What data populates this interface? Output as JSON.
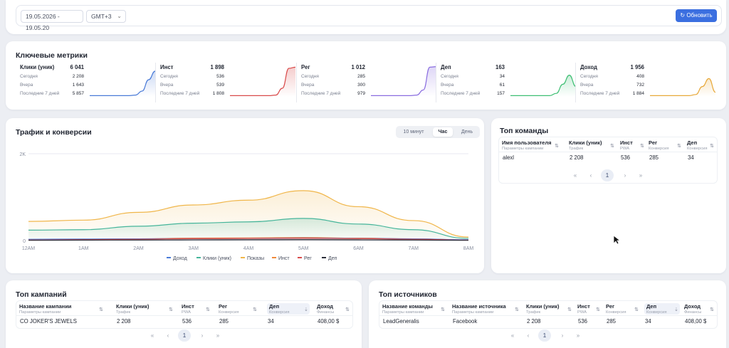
{
  "filters": {
    "date_range": "19.05.2026 - 19.05.20",
    "timezone": "GMT+3",
    "refresh_label": "Обновить"
  },
  "metrics": {
    "title": "Ключевые метрики",
    "row_labels": [
      "Сегодня",
      "Вчера",
      "Последние 7 дней"
    ],
    "items": [
      {
        "name": "Клики (уник)",
        "total": "6 041",
        "today": "2 208",
        "yesterday": "1 643",
        "last7": "5 857",
        "color": "#4a7bd8",
        "shape": [
          2,
          2,
          2,
          2,
          2,
          2,
          2,
          3,
          10,
          30,
          45
        ]
      },
      {
        "name": "Инст",
        "total": "1 898",
        "today": "536",
        "yesterday": "539",
        "last7": "1 808",
        "color": "#d94b4b",
        "shape": [
          2,
          2,
          2,
          2,
          2,
          2,
          2,
          3,
          15,
          50,
          52
        ]
      },
      {
        "name": "Рег",
        "total": "1 012",
        "today": "285",
        "yesterday": "300",
        "last7": "979",
        "color": "#8a6de0",
        "shape": [
          2,
          2,
          2,
          2,
          2,
          2,
          2,
          3,
          12,
          52,
          53
        ]
      },
      {
        "name": "Деп",
        "total": "163",
        "today": "34",
        "yesterday": "61",
        "last7": "157",
        "color": "#3fbf74",
        "shape": [
          2,
          2,
          2,
          2,
          2,
          2,
          2,
          6,
          22,
          38,
          18
        ]
      },
      {
        "name": "Доход",
        "total": "1 956",
        "today": "408",
        "yesterday": "732",
        "last7": "1 884",
        "color": "#e8a93b",
        "shape": [
          2,
          2,
          2,
          2,
          2,
          2,
          2,
          4,
          18,
          32,
          8
        ]
      }
    ]
  },
  "traffic": {
    "title": "Трафик и конверсии",
    "tabs": [
      "10 минут",
      "Час",
      "День"
    ],
    "active_tab": "Час"
  },
  "chart_data": {
    "type": "area",
    "y_ticks": [
      "2K",
      "0"
    ],
    "ylim": [
      0,
      2000
    ],
    "x": [
      "12AM",
      "1AM",
      "2AM",
      "3AM",
      "4AM",
      "5AM",
      "6AM",
      "7AM",
      "8AM"
    ],
    "grid": true,
    "legend_placement": "bottom",
    "series": [
      {
        "name": "Доход",
        "color": "#4a7bd8",
        "values": [
          30,
          35,
          40,
          45,
          50,
          60,
          50,
          40,
          20
        ]
      },
      {
        "name": "Клики (уник)",
        "color": "#45b59a",
        "values": [
          240,
          250,
          330,
          400,
          430,
          510,
          380,
          250,
          50
        ]
      },
      {
        "name": "Показы",
        "color": "#f0b64a",
        "values": [
          440,
          470,
          650,
          820,
          930,
          1150,
          780,
          460,
          80
        ]
      },
      {
        "name": "Инст",
        "color": "#f08a3a",
        "values": [
          20,
          30,
          40,
          55,
          60,
          70,
          55,
          40,
          15
        ]
      },
      {
        "name": "Рег",
        "color": "#d94b4b",
        "values": [
          10,
          20,
          30,
          45,
          50,
          55,
          45,
          30,
          10
        ]
      },
      {
        "name": "Деп",
        "color": "#2b2f3a",
        "values": [
          5,
          10,
          12,
          15,
          18,
          20,
          16,
          12,
          5
        ]
      }
    ]
  },
  "teams": {
    "title": "Топ команды",
    "columns": [
      {
        "label": "Имя пользователя",
        "sub": "Параметры кампании"
      },
      {
        "label": "Клики (уник)",
        "sub": "Трафик"
      },
      {
        "label": "Инст",
        "sub": "PWA"
      },
      {
        "label": "Рег",
        "sub": "Конверсия"
      },
      {
        "label": "Деп",
        "sub": "Конверсия"
      }
    ],
    "rows": [
      [
        "alexl",
        "2 208",
        "536",
        "285",
        "34"
      ]
    ],
    "page": "1"
  },
  "campaigns": {
    "title": "Топ кампаний",
    "columns": [
      {
        "label": "Название кампании",
        "sub": "Параметры кампании"
      },
      {
        "label": "Клики (уник)",
        "sub": "Трафик"
      },
      {
        "label": "Инст",
        "sub": "PWA"
      },
      {
        "label": "Рег",
        "sub": "Конверсия"
      },
      {
        "label": "Деп",
        "sub": "Конверсия"
      },
      {
        "label": "Доход",
        "sub": "Финансы"
      }
    ],
    "rows": [
      [
        "CO JOKER'S JEWELS",
        "2 208",
        "536",
        "285",
        "34",
        "408,00 $"
      ]
    ],
    "page": "1"
  },
  "sources": {
    "title": "Топ источников",
    "columns": [
      {
        "label": "Название команды",
        "sub": "Параметры кампании"
      },
      {
        "label": "Название источника",
        "sub": "Параметры кампании"
      },
      {
        "label": "Клики (уник)",
        "sub": "Трафик"
      },
      {
        "label": "Инст",
        "sub": "PWA"
      },
      {
        "label": "Рег",
        "sub": "Конверсия"
      },
      {
        "label": "Деп",
        "sub": "Конверсия"
      },
      {
        "label": "Доход",
        "sub": "Финансы"
      }
    ],
    "rows": [
      [
        "LeadGeneralis",
        "Facebook",
        "2 208",
        "536",
        "285",
        "34",
        "408,00 $"
      ]
    ],
    "page": "1"
  },
  "pager_icons": {
    "first": "«",
    "prev": "‹",
    "next": "›",
    "last": "»"
  }
}
